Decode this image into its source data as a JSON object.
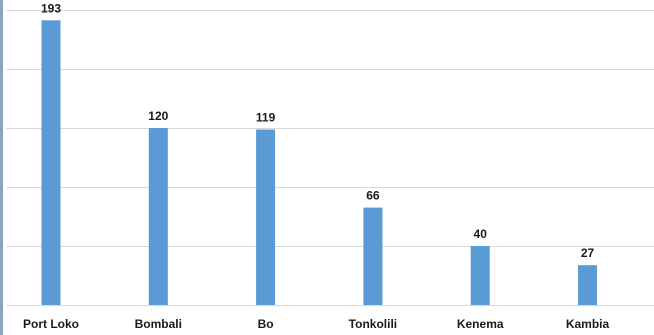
{
  "chart_data": {
    "type": "bar",
    "categories": [
      "Port Loko",
      "Bombali",
      "Bo",
      "Tonkolili",
      "Kenema",
      "Kambia"
    ],
    "values": [
      193,
      120,
      119,
      66,
      40,
      27
    ],
    "title": "",
    "xlabel": "",
    "ylabel": "",
    "ylim": [
      0,
      200
    ],
    "grid": true,
    "gridlines": [
      0,
      40,
      80,
      120,
      160,
      200
    ],
    "data_labels": true,
    "colors": {
      "bar": "#5b9bd5",
      "grid": "#d9d9d9",
      "frame": "#8ea3c4"
    }
  }
}
